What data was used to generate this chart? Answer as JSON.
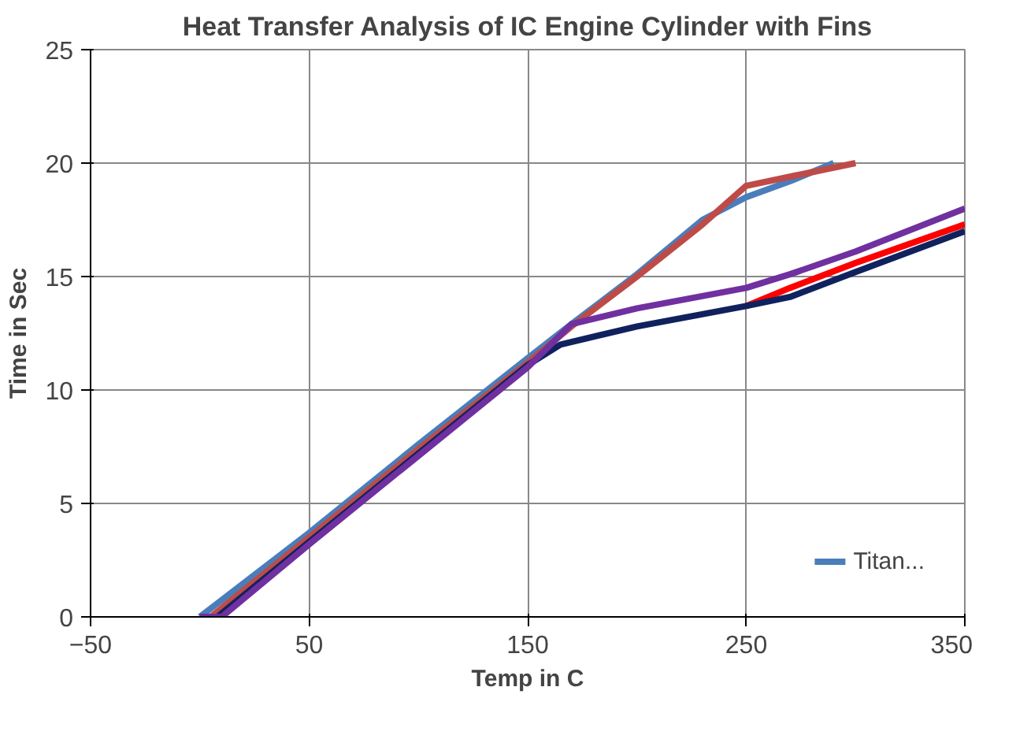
{
  "chart_data": {
    "type": "line",
    "title": "Heat Transfer Analysis of IC Engine Cylinder with Fins",
    "xlabel": "Temp in C",
    "ylabel": "Time in Sec",
    "xlim": [
      -50,
      350
    ],
    "xticks": [
      -50,
      50,
      150,
      250,
      350
    ],
    "ylim": [
      0,
      25
    ],
    "yticks": [
      0,
      5,
      10,
      15,
      20,
      25
    ],
    "grid": true,
    "legend": "bottom right",
    "line_style": "solid",
    "series": [
      {
        "name": "Titan...",
        "color": "#4a7ebb",
        "x": [
          0,
          50,
          100,
          150,
          170,
          200,
          230,
          250,
          270,
          290
        ],
        "values": [
          0,
          3.7,
          7.6,
          11.4,
          12.9,
          15.1,
          17.5,
          18.5,
          19.2,
          20
        ]
      },
      {
        "color": "#be4b48",
        "x": [
          5,
          50,
          100,
          150,
          170,
          200,
          230,
          250,
          270,
          300
        ],
        "values": [
          0,
          3.5,
          7.4,
          11.2,
          12.8,
          15,
          17.3,
          19,
          19.4,
          20
        ]
      },
      {
        "color": "#ff0000",
        "x": [
          250,
          270,
          300,
          350
        ],
        "values": [
          13.7,
          14.5,
          15.6,
          17.3
        ]
      },
      {
        "color": "#10225e",
        "x": [
          8,
          50,
          100,
          150,
          165,
          200,
          250,
          270,
          300,
          350
        ],
        "values": [
          0,
          3.3,
          7.2,
          11.1,
          12,
          12.8,
          13.7,
          14.1,
          15.2,
          17
        ]
      },
      {
        "color": "#7030a0",
        "x": [
          0,
          10,
          50,
          100,
          150,
          170,
          200,
          250,
          270,
          300,
          350
        ],
        "values": [
          0,
          0,
          3.2,
          7.1,
          11,
          12.9,
          13.6,
          14.5,
          15.1,
          16.1,
          18
        ]
      }
    ]
  }
}
